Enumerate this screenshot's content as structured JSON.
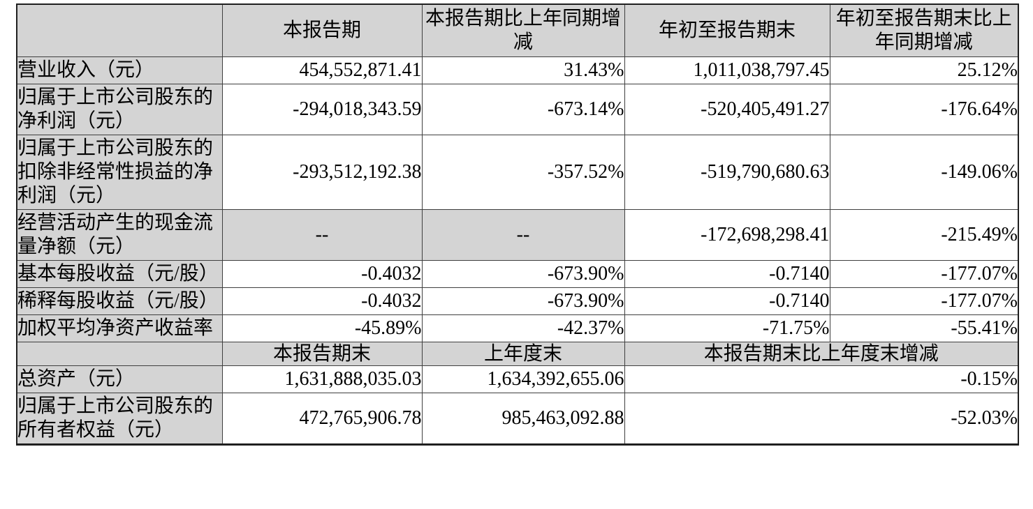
{
  "table": {
    "colors": {
      "header_bg": "#d4d4d4",
      "border": "#3f3f3f",
      "text": "#000000"
    },
    "header1": {
      "corner": "",
      "period": "本报告期",
      "period_change": "本报告期比上年同期增减",
      "ytd": "年初至报告期末",
      "ytd_change": "年初至报告期末比上年同期增减"
    },
    "rows1": [
      {
        "label": "营业收入（元）",
        "current": "454,552,871.41",
        "current_change": "31.43%",
        "ytd": "1,011,038,797.45",
        "ytd_change": "25.12%"
      },
      {
        "label": "归属于上市公司股东的净利润（元）",
        "current": "-294,018,343.59",
        "current_change": "-673.14%",
        "ytd": "-520,405,491.27",
        "ytd_change": "-176.64%"
      },
      {
        "label": "归属于上市公司股东的扣除非经常性损益的净利润（元）",
        "current": "-293,512,192.38",
        "current_change": "-357.52%",
        "ytd": "-519,790,680.63",
        "ytd_change": "-149.06%"
      },
      {
        "label": "经营活动产生的现金流量净额（元）",
        "current": "--",
        "current_change": "--",
        "ytd": "-172,698,298.41",
        "ytd_change": "-215.49%"
      },
      {
        "label": "基本每股收益（元/股）",
        "current": "-0.4032",
        "current_change": "-673.90%",
        "ytd": "-0.7140",
        "ytd_change": "-177.07%"
      },
      {
        "label": "稀释每股收益（元/股）",
        "current": "-0.4032",
        "current_change": "-673.90%",
        "ytd": "-0.7140",
        "ytd_change": "-177.07%"
      },
      {
        "label": "加权平均净资产收益率",
        "current": "-45.89%",
        "current_change": "-42.37%",
        "ytd": "-71.75%",
        "ytd_change": "-55.41%"
      }
    ],
    "header2": {
      "corner": "",
      "period_end": "本报告期末",
      "prev_year_end": "上年度末",
      "end_change": "本报告期末比上年度末增减"
    },
    "rows2": [
      {
        "label": "总资产（元）",
        "end_current": "1,631,888,035.03",
        "end_prev": "1,634,392,655.06",
        "change": "-0.15%"
      },
      {
        "label": "归属于上市公司股东的所有者权益（元）",
        "end_current": "472,765,906.78",
        "end_prev": "985,463,092.88",
        "change": "-52.03%"
      }
    ]
  }
}
